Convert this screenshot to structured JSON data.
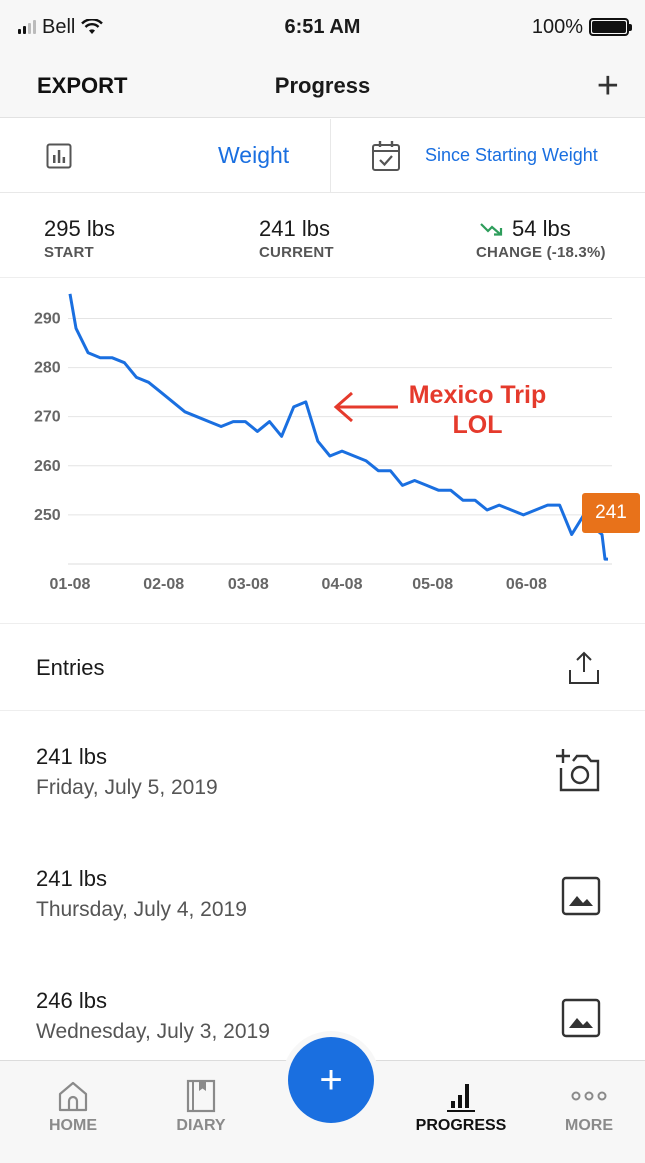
{
  "status_bar": {
    "carrier": "Bell",
    "time": "6:51 AM",
    "battery": "100%",
    "battery_level": 1.0
  },
  "nav": {
    "left": "EXPORT",
    "title": "Progress",
    "right_icon": "plus-icon"
  },
  "filters": {
    "metric": "Weight",
    "metric_icon": "bar-chart-icon",
    "range": "Since Starting Weight",
    "range_icon": "calendar-check-icon"
  },
  "stats": {
    "start": {
      "value": "295 lbs",
      "label": "START"
    },
    "current": {
      "value": "241 lbs",
      "label": "CURRENT"
    },
    "change": {
      "value": "54 lbs",
      "label": "CHANGE (-18.3%)",
      "icon": "trend-down-icon",
      "icon_color": "#2e9d5b"
    }
  },
  "chart_data": {
    "type": "line",
    "x_tick_labels": [
      "01-08",
      "02-08",
      "03-08",
      "04-08",
      "05-08",
      "06-08"
    ],
    "y_tick_labels": [
      "290",
      "280",
      "270",
      "260",
      "250"
    ],
    "ylim": [
      240,
      296
    ],
    "grid": true,
    "line_color": "#1a6fe0",
    "series": [
      {
        "x": [
          "2019-01-08",
          "2019-01-10",
          "2019-01-14",
          "2019-01-18",
          "2019-01-22",
          "2019-01-26",
          "2019-01-30",
          "2019-02-03",
          "2019-02-07",
          "2019-02-11",
          "2019-02-15",
          "2019-02-19",
          "2019-02-23",
          "2019-02-27",
          "2019-03-03",
          "2019-03-07",
          "2019-03-11",
          "2019-03-15",
          "2019-03-19",
          "2019-03-23",
          "2019-03-27",
          "2019-03-31",
          "2019-04-04",
          "2019-04-08",
          "2019-04-12",
          "2019-04-16",
          "2019-04-20",
          "2019-04-24",
          "2019-04-28",
          "2019-05-02",
          "2019-05-06",
          "2019-05-10",
          "2019-05-14",
          "2019-05-18",
          "2019-05-22",
          "2019-05-26",
          "2019-05-30",
          "2019-06-03",
          "2019-06-07",
          "2019-06-11",
          "2019-06-15",
          "2019-06-19",
          "2019-06-23",
          "2019-06-27",
          "2019-07-01",
          "2019-07-03",
          "2019-07-04",
          "2019-07-05"
        ],
        "y": [
          295,
          288,
          283,
          282,
          282,
          281,
          278,
          277,
          275,
          273,
          271,
          270,
          269,
          268,
          269,
          269,
          267,
          269,
          266,
          272,
          273,
          265,
          262,
          263,
          262,
          261,
          259,
          259,
          256,
          257,
          256,
          255,
          255,
          253,
          253,
          251,
          252,
          251,
          250,
          251,
          252,
          252,
          246,
          250,
          247,
          246,
          241,
          241
        ]
      }
    ],
    "tooltip_value": "241"
  },
  "annotation": {
    "line1": "Mexico Trip",
    "line2": "LOL",
    "color": "#e53a2c"
  },
  "entries": {
    "title": "Entries",
    "items": [
      {
        "weight": "241 lbs",
        "date": "Friday, July 5, 2019",
        "icon": "add-photo-icon"
      },
      {
        "weight": "241 lbs",
        "date": "Thursday, July 4, 2019",
        "icon": "image-icon"
      },
      {
        "weight": "246 lbs",
        "date": "Wednesday, July 3, 2019",
        "icon": "image-icon"
      }
    ]
  },
  "tabs": [
    {
      "label": "HOME",
      "icon": "home-icon"
    },
    {
      "label": "DIARY",
      "icon": "book-icon"
    },
    {
      "label": "PROGRESS",
      "icon": "progress-chart-icon",
      "active": true
    },
    {
      "label": "MORE",
      "icon": "more-dots-icon"
    }
  ],
  "accent_color": "#1a6fe0"
}
